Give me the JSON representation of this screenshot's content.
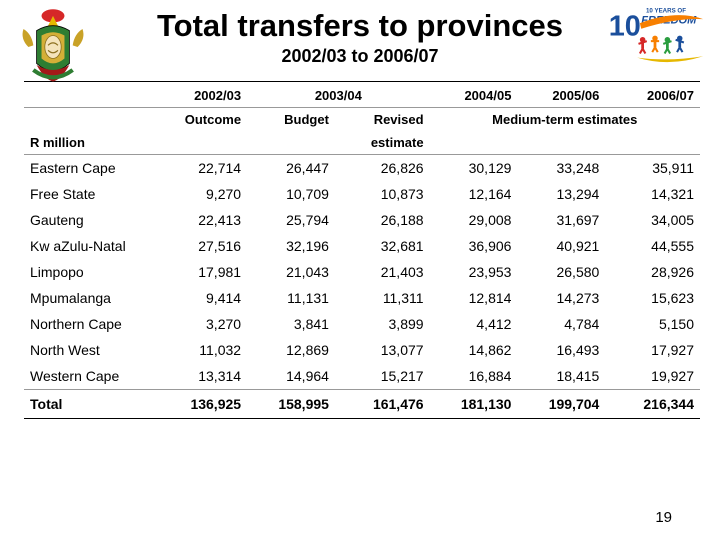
{
  "title": "Total transfers to provinces",
  "subtitle": "2002/03 to 2006/07",
  "page_number": "19",
  "logo_left": {
    "name": "sa-coat-of-arms",
    "colors": {
      "gold": "#d4af37",
      "green": "#2e7d32",
      "red": "#a31919",
      "black": "#000000"
    }
  },
  "logo_right": {
    "name": "ten-years-of-freedom",
    "caption_top": "10 YEARS OF",
    "caption_word": "FREEDOM",
    "colors": {
      "blue": "#1b4f9c",
      "red": "#d62828",
      "orange": "#f77f00",
      "green": "#2a9d3f",
      "gold": "#e6b800"
    }
  },
  "table": {
    "row_header_label": "R million",
    "years": [
      "2002/03",
      "2003/04",
      "2004/05",
      "2005/06",
      "2006/07"
    ],
    "col_group_labels": {
      "outcome": "Outcome",
      "budget": "Budget",
      "revised": "Revised",
      "revised_line2": "estimate",
      "mte": "Medium-term estimates"
    },
    "columns_widths_pct": [
      20,
      13,
      13,
      14,
      13,
      13,
      14
    ],
    "rows": [
      {
        "label": "Eastern Cape",
        "values": [
          "22,714",
          "26,447",
          "26,826",
          "30,129",
          "33,248",
          "35,911"
        ]
      },
      {
        "label": "Free State",
        "values": [
          "9,270",
          "10,709",
          "10,873",
          "12,164",
          "13,294",
          "14,321"
        ]
      },
      {
        "label": "Gauteng",
        "values": [
          "22,413",
          "25,794",
          "26,188",
          "29,008",
          "31,697",
          "34,005"
        ]
      },
      {
        "label": "Kw aZulu-Natal",
        "values": [
          "27,516",
          "32,196",
          "32,681",
          "36,906",
          "40,921",
          "44,555"
        ]
      },
      {
        "label": "Limpopo",
        "values": [
          "17,981",
          "21,043",
          "21,403",
          "23,953",
          "26,580",
          "28,926"
        ]
      },
      {
        "label": "Mpumalanga",
        "values": [
          "9,414",
          "11,131",
          "11,311",
          "12,814",
          "14,273",
          "15,623"
        ]
      },
      {
        "label": "Northern Cape",
        "values": [
          "3,270",
          "3,841",
          "3,899",
          "4,412",
          "4,784",
          "5,150"
        ]
      },
      {
        "label": "North West",
        "values": [
          "11,032",
          "12,869",
          "13,077",
          "14,862",
          "16,493",
          "17,927"
        ]
      },
      {
        "label": "Western Cape",
        "values": [
          "13,314",
          "14,964",
          "15,217",
          "16,884",
          "18,415",
          "19,927"
        ]
      }
    ],
    "total": {
      "label": "Total",
      "values": [
        "136,925",
        "158,995",
        "161,476",
        "181,130",
        "199,704",
        "216,344"
      ]
    }
  },
  "colors": {
    "text": "#000000",
    "rule_dark": "#000000",
    "rule_light": "#999999",
    "background": "#ffffff"
  },
  "typography": {
    "title_pt": 31,
    "subtitle_pt": 18,
    "header_pt": 13,
    "body_pt": 14,
    "page_pt": 15,
    "weight_bold": 700
  }
}
